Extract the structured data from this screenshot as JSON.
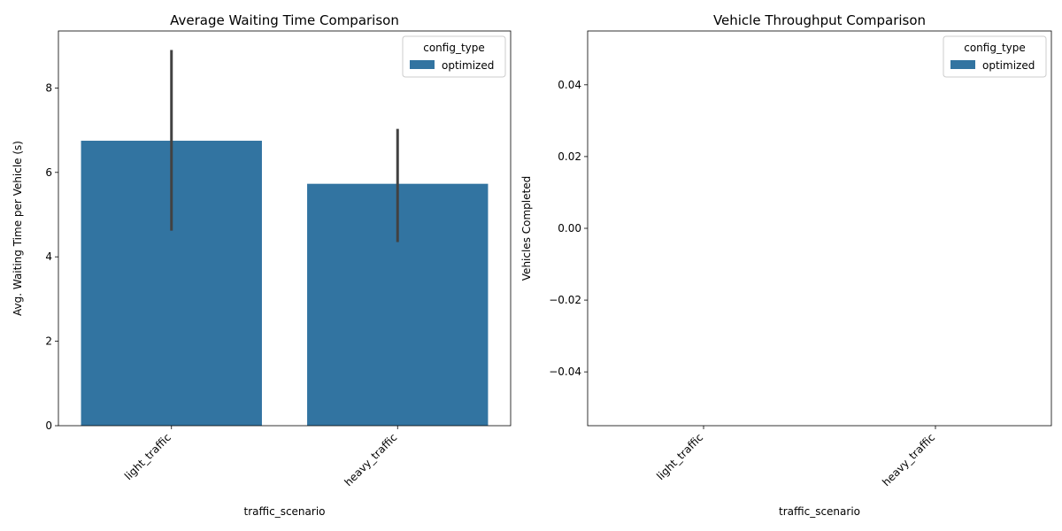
{
  "chart_data": [
    {
      "type": "bar",
      "title": "Average Waiting Time Comparison",
      "xlabel": "traffic_scenario",
      "ylabel": "Avg. Waiting Time per Vehicle (s)",
      "categories": [
        "light_traffic",
        "heavy_traffic"
      ],
      "series": [
        {
          "name": "optimized",
          "values": [
            6.75,
            5.73
          ],
          "error_low": [
            4.62,
            4.35
          ],
          "error_high": [
            8.9,
            7.03
          ],
          "color": "#3274a1"
        }
      ],
      "ylim": [
        0,
        9.35
      ],
      "yticks": [
        0,
        2,
        4,
        6,
        8
      ],
      "ytick_labels": [
        "0",
        "2",
        "4",
        "6",
        "8"
      ],
      "legend": {
        "title": "config_type",
        "placement": "upper-right"
      },
      "grid": false
    },
    {
      "type": "bar",
      "title": "Vehicle Throughput Comparison",
      "xlabel": "traffic_scenario",
      "ylabel": "Vehicles Completed",
      "categories": [
        "light_traffic",
        "heavy_traffic"
      ],
      "series": [
        {
          "name": "optimized",
          "values": [
            0,
            0
          ],
          "color": "#3274a1"
        }
      ],
      "ylim": [
        -0.055,
        0.055
      ],
      "yticks": [
        -0.04,
        -0.02,
        0.0,
        0.02,
        0.04
      ],
      "ytick_labels": [
        "−0.04",
        "−0.02",
        "0.00",
        "0.02",
        "0.04"
      ],
      "legend": {
        "title": "config_type",
        "placement": "upper-right"
      },
      "grid": false
    }
  ]
}
